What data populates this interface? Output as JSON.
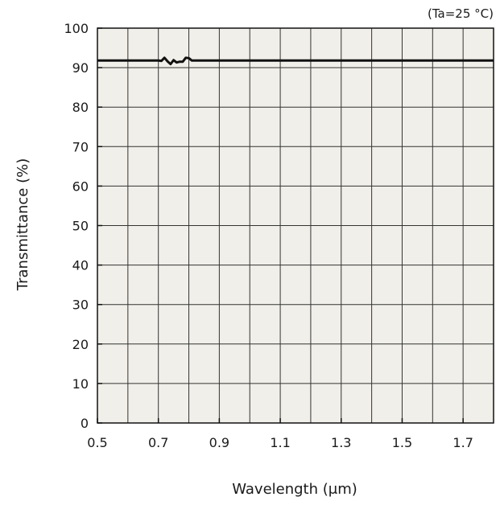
{
  "chart_data": {
    "type": "line",
    "condition_note": "(Ta=25 °C)",
    "xlabel": "Wavelength (μm)",
    "ylabel": "Transmittance (%)",
    "xlim": [
      0.5,
      1.8
    ],
    "ylim": [
      0,
      100
    ],
    "x_ticks": [
      0.5,
      0.7,
      0.9,
      1.1,
      1.3,
      1.5,
      1.7
    ],
    "x_tick_labels": [
      "0.5",
      "0.7",
      "0.9",
      "1.1",
      "1.3",
      "1.5",
      "1.7"
    ],
    "x_gridlines": [
      0.6,
      0.7,
      0.8,
      0.9,
      1.0,
      1.1,
      1.2,
      1.3,
      1.4,
      1.5,
      1.6,
      1.7
    ],
    "y_ticks": [
      0,
      10,
      20,
      30,
      40,
      50,
      60,
      70,
      80,
      90,
      100
    ],
    "y_tick_labels": [
      "0",
      "10",
      "20",
      "30",
      "40",
      "50",
      "60",
      "70",
      "80",
      "90",
      "100"
    ],
    "grid": true,
    "plot_background": "#f1efe9",
    "grid_color": "#333333",
    "line_color": "#111111",
    "series": [
      {
        "x": [
          0.5,
          0.6,
          0.7,
          0.71,
          0.72,
          0.73,
          0.74,
          0.75,
          0.76,
          0.77,
          0.78,
          0.79,
          0.8,
          0.81,
          0.82,
          0.9,
          1.0,
          1.1,
          1.2,
          1.3,
          1.4,
          1.5,
          1.6,
          1.7,
          1.8
        ],
        "y": [
          91.8,
          91.8,
          91.8,
          91.7,
          92.5,
          91.6,
          90.9,
          91.9,
          91.3,
          91.5,
          91.5,
          92.5,
          92.4,
          91.8,
          91.8,
          91.8,
          91.8,
          91.8,
          91.8,
          91.8,
          91.8,
          91.8,
          91.8,
          91.8,
          91.8
        ]
      }
    ]
  }
}
